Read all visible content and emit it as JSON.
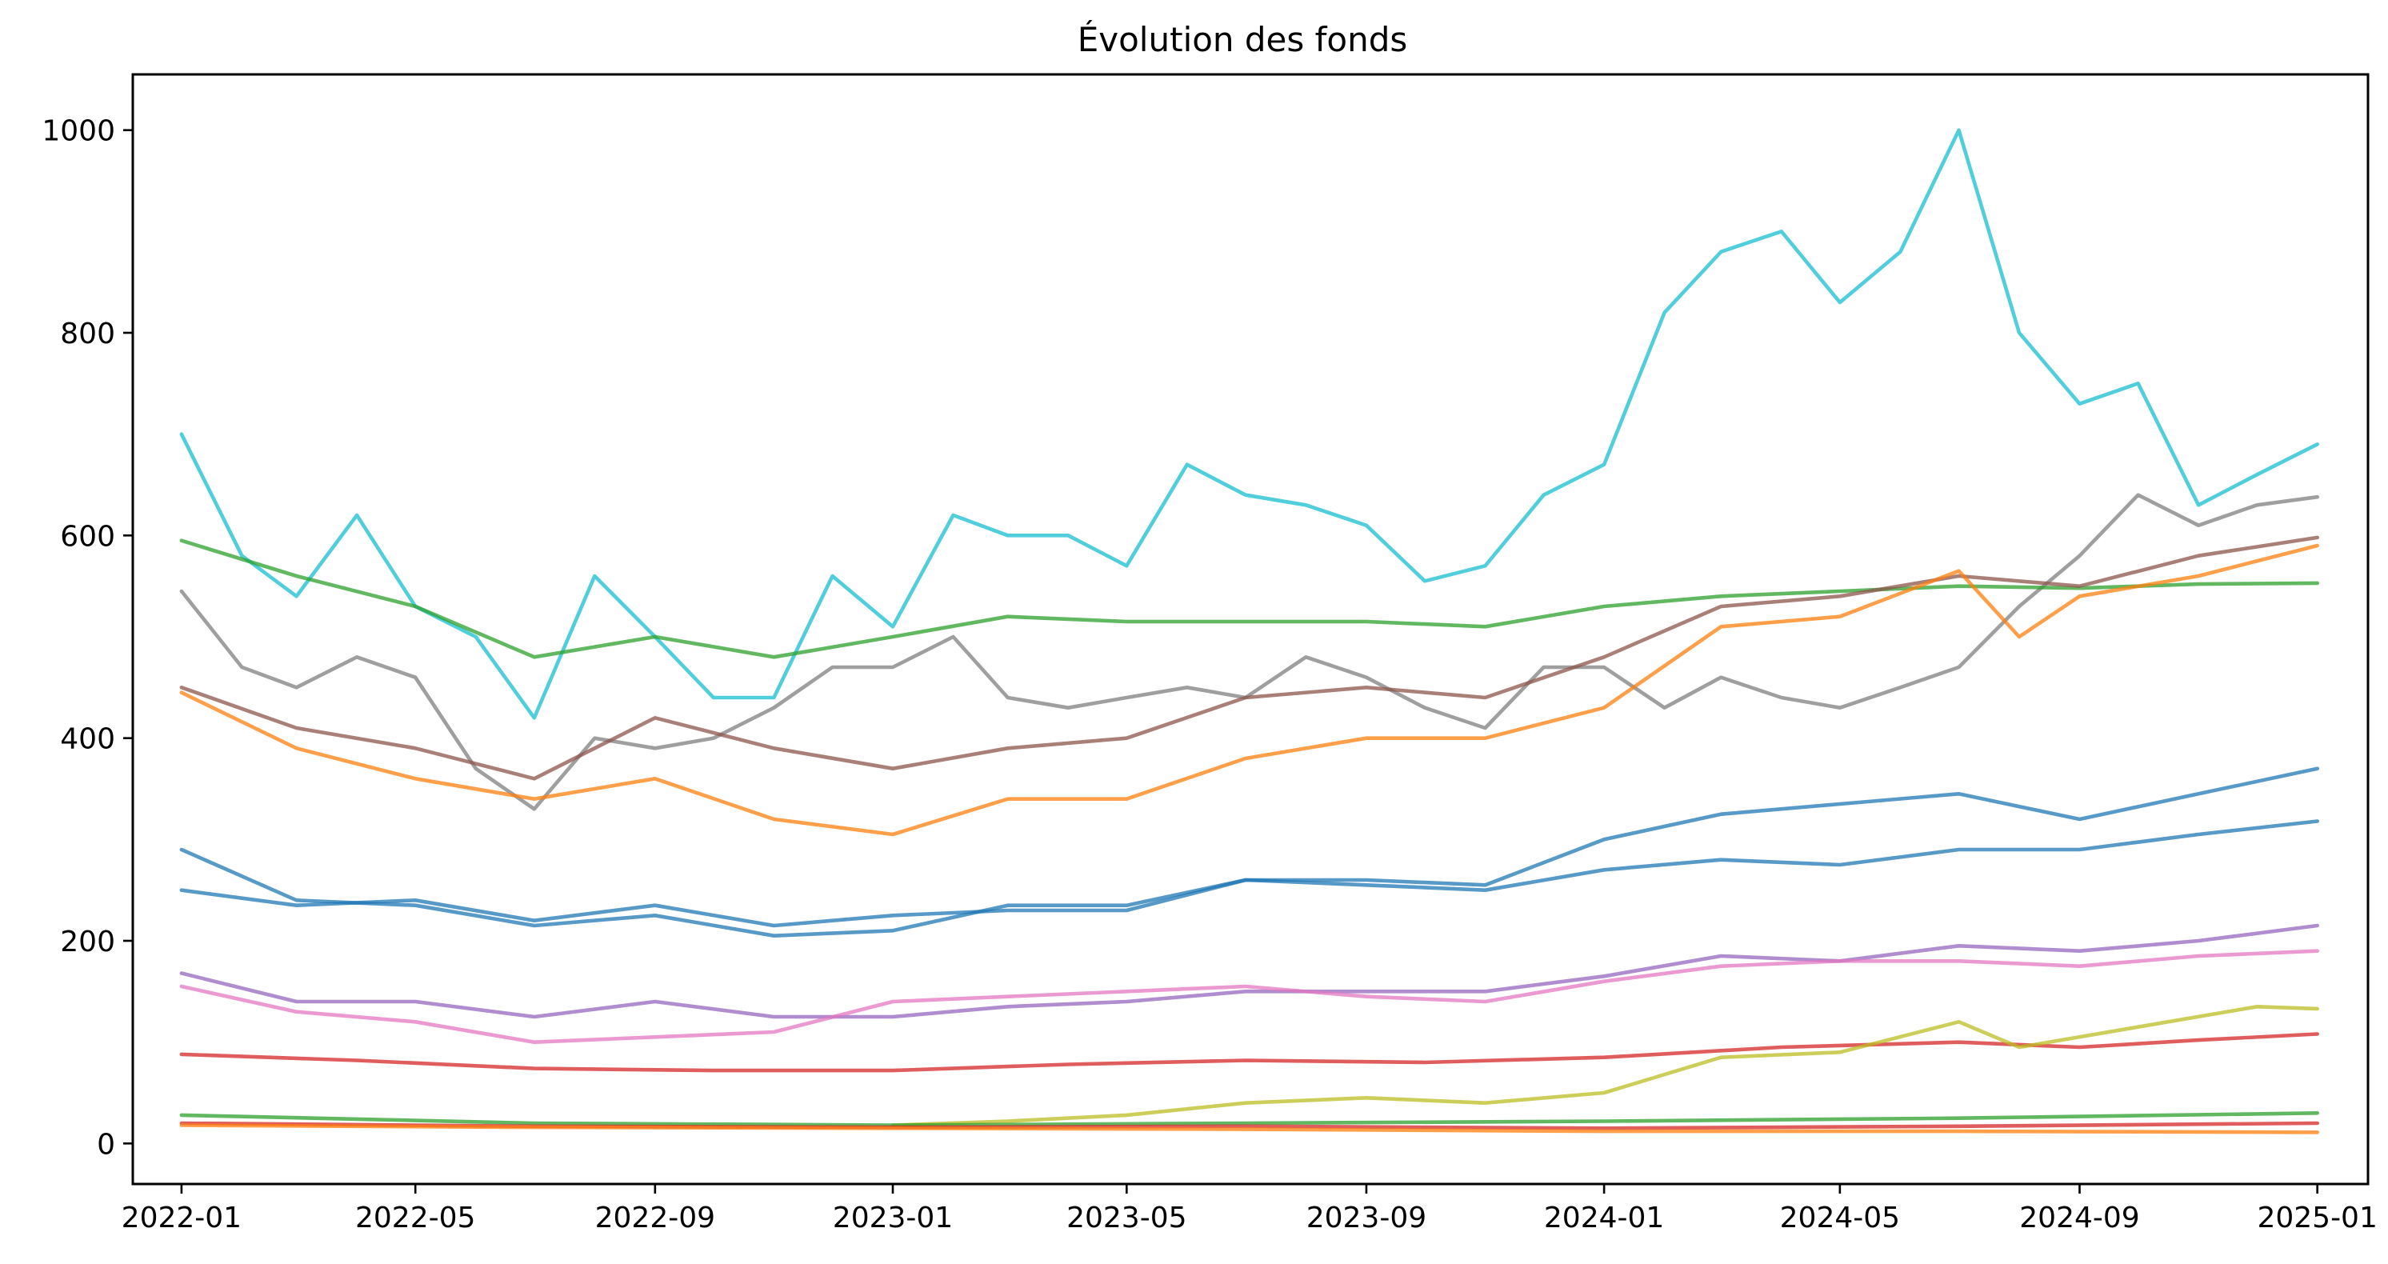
{
  "chart_data": {
    "type": "line",
    "title": "Évolution des fonds",
    "xlabel": "",
    "ylabel": "",
    "x_ticks": [
      "2022-01",
      "2022-05",
      "2022-09",
      "2023-01",
      "2023-05",
      "2023-09",
      "2024-01",
      "2024-05",
      "2024-09",
      "2025-01"
    ],
    "y_ticks": [
      "0",
      "200",
      "400",
      "600",
      "800",
      "1000"
    ],
    "x_range": [
      "2021-12-07",
      "2025-01-27"
    ],
    "ylim": [
      -40,
      1055
    ],
    "grid": false,
    "legend": "none",
    "series": [
      {
        "color": "#17becf",
        "points": [
          [
            "2022-01-01",
            700
          ],
          [
            "2022-02-01",
            580
          ],
          [
            "2022-03-01",
            540
          ],
          [
            "2022-04-01",
            620
          ],
          [
            "2022-05-01",
            530
          ],
          [
            "2022-06-01",
            500
          ],
          [
            "2022-07-01",
            420
          ],
          [
            "2022-08-01",
            560
          ],
          [
            "2022-09-01",
            500
          ],
          [
            "2022-10-01",
            440
          ],
          [
            "2022-11-01",
            440
          ],
          [
            "2022-12-01",
            560
          ],
          [
            "2023-01-01",
            510
          ],
          [
            "2023-02-01",
            620
          ],
          [
            "2023-03-01",
            600
          ],
          [
            "2023-04-01",
            600
          ],
          [
            "2023-05-01",
            570
          ],
          [
            "2023-06-01",
            670
          ],
          [
            "2023-07-01",
            640
          ],
          [
            "2023-08-01",
            630
          ],
          [
            "2023-09-01",
            610
          ],
          [
            "2023-10-01",
            555
          ],
          [
            "2023-11-01",
            570
          ],
          [
            "2023-12-01",
            640
          ],
          [
            "2024-01-01",
            670
          ],
          [
            "2024-02-01",
            820
          ],
          [
            "2024-03-01",
            880
          ],
          [
            "2024-04-01",
            900
          ],
          [
            "2024-05-01",
            830
          ],
          [
            "2024-06-01",
            880
          ],
          [
            "2024-07-01",
            1000
          ],
          [
            "2024-08-01",
            800
          ],
          [
            "2024-09-01",
            730
          ],
          [
            "2024-10-01",
            750
          ],
          [
            "2024-11-01",
            630
          ],
          [
            "2024-12-01",
            660
          ],
          [
            "2025-01-01",
            690
          ]
        ]
      },
      {
        "color": "#7f7f7f",
        "points": [
          [
            "2022-01-01",
            545
          ],
          [
            "2022-02-01",
            470
          ],
          [
            "2022-03-01",
            450
          ],
          [
            "2022-04-01",
            480
          ],
          [
            "2022-05-01",
            460
          ],
          [
            "2022-06-01",
            370
          ],
          [
            "2022-07-01",
            330
          ],
          [
            "2022-08-01",
            400
          ],
          [
            "2022-09-01",
            390
          ],
          [
            "2022-10-01",
            400
          ],
          [
            "2022-11-01",
            430
          ],
          [
            "2022-12-01",
            470
          ],
          [
            "2023-01-01",
            470
          ],
          [
            "2023-02-01",
            500
          ],
          [
            "2023-03-01",
            440
          ],
          [
            "2023-04-01",
            430
          ],
          [
            "2023-05-01",
            440
          ],
          [
            "2023-06-01",
            450
          ],
          [
            "2023-07-01",
            440
          ],
          [
            "2023-08-01",
            480
          ],
          [
            "2023-09-01",
            460
          ],
          [
            "2023-10-01",
            430
          ],
          [
            "2023-11-01",
            410
          ],
          [
            "2023-12-01",
            470
          ],
          [
            "2024-01-01",
            470
          ],
          [
            "2024-02-01",
            430
          ],
          [
            "2024-03-01",
            460
          ],
          [
            "2024-04-01",
            440
          ],
          [
            "2024-05-01",
            430
          ],
          [
            "2024-06-01",
            450
          ],
          [
            "2024-07-01",
            470
          ],
          [
            "2024-08-01",
            530
          ],
          [
            "2024-09-01",
            580
          ],
          [
            "2024-10-01",
            640
          ],
          [
            "2024-11-01",
            610
          ],
          [
            "2024-12-01",
            630
          ],
          [
            "2025-01-01",
            638
          ]
        ]
      },
      {
        "color": "#2ca02c",
        "points": [
          [
            "2022-01-01",
            595
          ],
          [
            "2022-03-01",
            560
          ],
          [
            "2022-05-01",
            530
          ],
          [
            "2022-07-01",
            480
          ],
          [
            "2022-09-01",
            500
          ],
          [
            "2022-11-01",
            480
          ],
          [
            "2023-01-01",
            500
          ],
          [
            "2023-03-01",
            520
          ],
          [
            "2023-05-01",
            515
          ],
          [
            "2023-07-01",
            515
          ],
          [
            "2023-09-01",
            515
          ],
          [
            "2023-11-01",
            510
          ],
          [
            "2024-01-01",
            530
          ],
          [
            "2024-03-01",
            540
          ],
          [
            "2024-05-01",
            545
          ],
          [
            "2024-07-01",
            550
          ],
          [
            "2024-09-01",
            548
          ],
          [
            "2024-11-01",
            552
          ],
          [
            "2025-01-01",
            553
          ]
        ]
      },
      {
        "color": "#8c564b",
        "points": [
          [
            "2022-01-01",
            450
          ],
          [
            "2022-03-01",
            410
          ],
          [
            "2022-05-01",
            390
          ],
          [
            "2022-07-01",
            360
          ],
          [
            "2022-09-01",
            420
          ],
          [
            "2022-11-01",
            390
          ],
          [
            "2023-01-01",
            370
          ],
          [
            "2023-03-01",
            390
          ],
          [
            "2023-05-01",
            400
          ],
          [
            "2023-07-01",
            440
          ],
          [
            "2023-09-01",
            450
          ],
          [
            "2023-11-01",
            440
          ],
          [
            "2024-01-01",
            480
          ],
          [
            "2024-03-01",
            530
          ],
          [
            "2024-05-01",
            540
          ],
          [
            "2024-07-01",
            560
          ],
          [
            "2024-09-01",
            550
          ],
          [
            "2024-11-01",
            580
          ],
          [
            "2025-01-01",
            598
          ]
        ]
      },
      {
        "color": "#ff7f0e",
        "points": [
          [
            "2022-01-01",
            445
          ],
          [
            "2022-03-01",
            390
          ],
          [
            "2022-05-01",
            360
          ],
          [
            "2022-07-01",
            340
          ],
          [
            "2022-09-01",
            360
          ],
          [
            "2022-11-01",
            320
          ],
          [
            "2023-01-01",
            305
          ],
          [
            "2023-03-01",
            340
          ],
          [
            "2023-05-01",
            340
          ],
          [
            "2023-07-01",
            380
          ],
          [
            "2023-09-01",
            400
          ],
          [
            "2023-11-01",
            400
          ],
          [
            "2024-01-01",
            430
          ],
          [
            "2024-03-01",
            510
          ],
          [
            "2024-05-01",
            520
          ],
          [
            "2024-07-01",
            565
          ],
          [
            "2024-08-01",
            500
          ],
          [
            "2024-09-01",
            540
          ],
          [
            "2024-11-01",
            560
          ],
          [
            "2025-01-01",
            590
          ]
        ]
      },
      {
        "color": "#1f77b4",
        "points": [
          [
            "2022-01-01",
            290
          ],
          [
            "2022-03-01",
            240
          ],
          [
            "2022-05-01",
            235
          ],
          [
            "2022-07-01",
            215
          ],
          [
            "2022-09-01",
            225
          ],
          [
            "2022-11-01",
            205
          ],
          [
            "2023-01-01",
            210
          ],
          [
            "2023-03-01",
            235
          ],
          [
            "2023-05-01",
            235
          ],
          [
            "2023-07-01",
            260
          ],
          [
            "2023-09-01",
            260
          ],
          [
            "2023-11-01",
            255
          ],
          [
            "2024-01-01",
            300
          ],
          [
            "2024-03-01",
            325
          ],
          [
            "2024-05-01",
            335
          ],
          [
            "2024-07-01",
            345
          ],
          [
            "2024-09-01",
            320
          ],
          [
            "2024-11-01",
            345
          ],
          [
            "2025-01-01",
            370
          ]
        ]
      },
      {
        "color": "#1f77b4",
        "points": [
          [
            "2022-01-01",
            250
          ],
          [
            "2022-03-01",
            235
          ],
          [
            "2022-05-01",
            240
          ],
          [
            "2022-07-01",
            220
          ],
          [
            "2022-09-01",
            235
          ],
          [
            "2022-11-01",
            215
          ],
          [
            "2023-01-01",
            225
          ],
          [
            "2023-03-01",
            230
          ],
          [
            "2023-05-01",
            230
          ],
          [
            "2023-07-01",
            260
          ],
          [
            "2023-09-01",
            255
          ],
          [
            "2023-11-01",
            250
          ],
          [
            "2024-01-01",
            270
          ],
          [
            "2024-03-01",
            280
          ],
          [
            "2024-05-01",
            275
          ],
          [
            "2024-07-01",
            290
          ],
          [
            "2024-09-01",
            290
          ],
          [
            "2024-11-01",
            305
          ],
          [
            "2025-01-01",
            318
          ]
        ]
      },
      {
        "color": "#9467bd",
        "points": [
          [
            "2022-01-01",
            168
          ],
          [
            "2022-03-01",
            140
          ],
          [
            "2022-05-01",
            140
          ],
          [
            "2022-07-01",
            125
          ],
          [
            "2022-09-01",
            140
          ],
          [
            "2022-11-01",
            125
          ],
          [
            "2023-01-01",
            125
          ],
          [
            "2023-03-01",
            135
          ],
          [
            "2023-05-01",
            140
          ],
          [
            "2023-07-01",
            150
          ],
          [
            "2023-09-01",
            150
          ],
          [
            "2023-11-01",
            150
          ],
          [
            "2024-01-01",
            165
          ],
          [
            "2024-03-01",
            185
          ],
          [
            "2024-05-01",
            180
          ],
          [
            "2024-07-01",
            195
          ],
          [
            "2024-09-01",
            190
          ],
          [
            "2024-11-01",
            200
          ],
          [
            "2025-01-01",
            215
          ]
        ]
      },
      {
        "color": "#e377c2",
        "points": [
          [
            "2022-01-01",
            155
          ],
          [
            "2022-03-01",
            130
          ],
          [
            "2022-05-01",
            120
          ],
          [
            "2022-07-01",
            100
          ],
          [
            "2022-09-01",
            105
          ],
          [
            "2022-11-01",
            110
          ],
          [
            "2023-01-01",
            140
          ],
          [
            "2023-03-01",
            145
          ],
          [
            "2023-05-01",
            150
          ],
          [
            "2023-07-01",
            155
          ],
          [
            "2023-09-01",
            145
          ],
          [
            "2023-11-01",
            140
          ],
          [
            "2024-01-01",
            160
          ],
          [
            "2024-03-01",
            175
          ],
          [
            "2024-05-01",
            180
          ],
          [
            "2024-07-01",
            180
          ],
          [
            "2024-09-01",
            175
          ],
          [
            "2024-11-01",
            185
          ],
          [
            "2025-01-01",
            190
          ]
        ]
      },
      {
        "color": "#d62728",
        "points": [
          [
            "2022-01-01",
            88
          ],
          [
            "2022-04-01",
            82
          ],
          [
            "2022-07-01",
            74
          ],
          [
            "2022-10-01",
            72
          ],
          [
            "2023-01-01",
            72
          ],
          [
            "2023-04-01",
            78
          ],
          [
            "2023-07-01",
            82
          ],
          [
            "2023-10-01",
            80
          ],
          [
            "2024-01-01",
            85
          ],
          [
            "2024-04-01",
            95
          ],
          [
            "2024-07-01",
            100
          ],
          [
            "2024-09-01",
            95
          ],
          [
            "2024-11-01",
            102
          ],
          [
            "2025-01-01",
            108
          ]
        ]
      },
      {
        "color": "#bcbd22",
        "points": [
          [
            "2023-01-01",
            18
          ],
          [
            "2023-03-01",
            22
          ],
          [
            "2023-05-01",
            28
          ],
          [
            "2023-07-01",
            40
          ],
          [
            "2023-09-01",
            45
          ],
          [
            "2023-11-01",
            40
          ],
          [
            "2024-01-01",
            50
          ],
          [
            "2024-03-01",
            85
          ],
          [
            "2024-05-01",
            90
          ],
          [
            "2024-07-01",
            120
          ],
          [
            "2024-08-01",
            95
          ],
          [
            "2024-10-01",
            115
          ],
          [
            "2024-12-01",
            135
          ],
          [
            "2025-01-01",
            133
          ]
        ]
      },
      {
        "color": "#2ca02c",
        "points": [
          [
            "2022-01-01",
            28
          ],
          [
            "2022-07-01",
            20
          ],
          [
            "2023-01-01",
            18
          ],
          [
            "2023-07-01",
            20
          ],
          [
            "2024-01-01",
            22
          ],
          [
            "2024-07-01",
            25
          ],
          [
            "2025-01-01",
            30
          ]
        ]
      },
      {
        "color": "#d62728",
        "points": [
          [
            "2022-01-01",
            20
          ],
          [
            "2022-07-01",
            17
          ],
          [
            "2023-01-01",
            16
          ],
          [
            "2023-07-01",
            17
          ],
          [
            "2024-01-01",
            15
          ],
          [
            "2024-07-01",
            17
          ],
          [
            "2025-01-01",
            20
          ]
        ]
      },
      {
        "color": "#ff7f0e",
        "points": [
          [
            "2022-01-01",
            18
          ],
          [
            "2022-07-01",
            16
          ],
          [
            "2023-01-01",
            15
          ],
          [
            "2023-07-01",
            14
          ],
          [
            "2024-01-01",
            12
          ],
          [
            "2024-07-01",
            12
          ],
          [
            "2025-01-01",
            11
          ]
        ]
      }
    ]
  }
}
